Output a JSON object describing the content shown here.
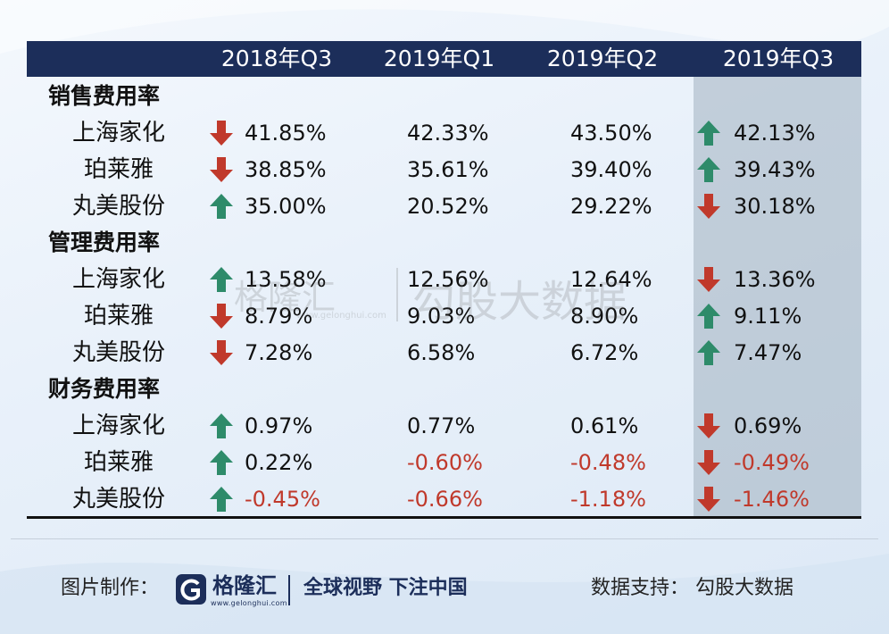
{
  "header": {
    "columns": [
      "2018年Q3",
      "2019年Q1",
      "2019年Q2",
      "2019年Q3"
    ]
  },
  "sections": [
    {
      "title": "销售费用率",
      "rows": [
        {
          "company": "上海家化",
          "values": [
            "41.85%",
            "42.33%",
            "43.50%",
            "42.13%"
          ],
          "arrows": [
            "down",
            null,
            null,
            "up"
          ]
        },
        {
          "company": "珀莱雅",
          "values": [
            "38.85%",
            "35.61%",
            "39.40%",
            "39.43%"
          ],
          "arrows": [
            "down",
            null,
            null,
            "up"
          ]
        },
        {
          "company": "丸美股份",
          "values": [
            "35.00%",
            "20.52%",
            "29.22%",
            "30.18%"
          ],
          "arrows": [
            "up",
            null,
            null,
            "down"
          ]
        }
      ]
    },
    {
      "title": "管理费用率",
      "rows": [
        {
          "company": "上海家化",
          "values": [
            "13.58%",
            "12.56%",
            "12.64%",
            "13.36%"
          ],
          "arrows": [
            "up",
            null,
            null,
            "down"
          ]
        },
        {
          "company": "珀莱雅",
          "values": [
            "8.79%",
            "9.03%",
            "8.90%",
            "9.11%"
          ],
          "arrows": [
            "down",
            null,
            null,
            "up"
          ]
        },
        {
          "company": "丸美股份",
          "values": [
            "7.28%",
            "6.58%",
            "6.72%",
            "7.47%"
          ],
          "arrows": [
            "down",
            null,
            null,
            "up"
          ]
        }
      ]
    },
    {
      "title": "财务费用率",
      "rows": [
        {
          "company": "上海家化",
          "values": [
            "0.97%",
            "0.77%",
            "0.61%",
            "0.69%"
          ],
          "arrows": [
            "up",
            null,
            null,
            "down"
          ]
        },
        {
          "company": "珀莱雅",
          "values": [
            "0.22%",
            "-0.60%",
            "-0.48%",
            "-0.49%"
          ],
          "arrows": [
            "up",
            null,
            null,
            "down"
          ]
        },
        {
          "company": "丸美股份",
          "values": [
            "-0.45%",
            "-0.66%",
            "-1.18%",
            "-1.46%"
          ],
          "arrows": [
            "up",
            null,
            null,
            "down"
          ]
        }
      ]
    }
  ],
  "footer": {
    "made_by_label": "图片制作：",
    "logo_name": "格隆汇",
    "logo_url": "www.gelonghui.com",
    "slogan": "全球视野 下注中国",
    "support_label": "数据支持：  勾股大数据"
  },
  "watermark": {
    "logo_text": "格隆汇",
    "url": "www.gelonghui.com",
    "brand": "勾股大数据"
  },
  "colors": {
    "header_bg": "#1c2e5a",
    "up_arrow": "#2e8b6a",
    "down_arrow": "#c0392b",
    "negative_text": "#c0392b",
    "highlight_col": "#a0b0c0"
  }
}
